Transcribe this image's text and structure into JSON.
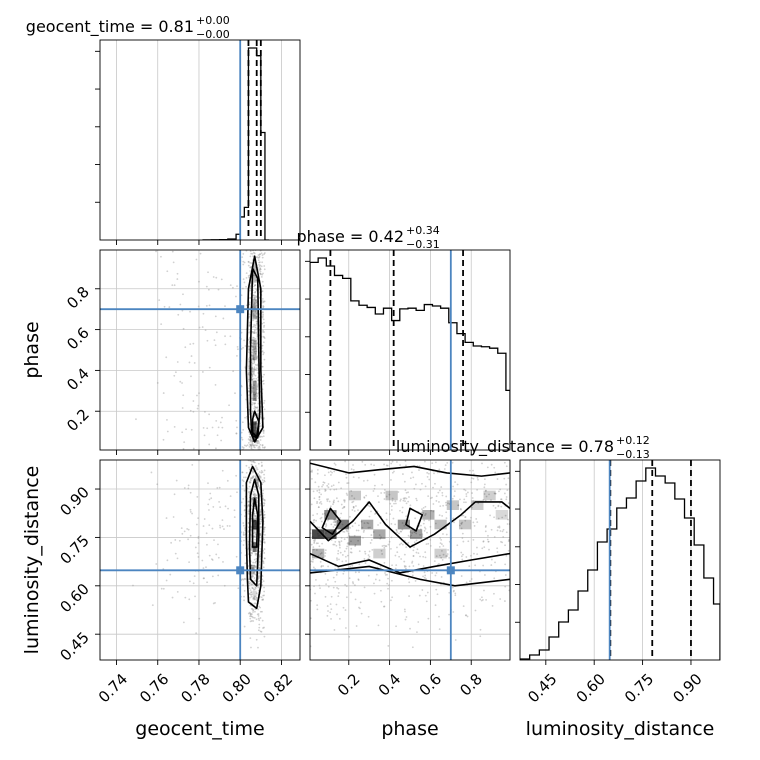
{
  "chart_data": {
    "type": "corner",
    "parameters": [
      "geocent_time",
      "phase",
      "luminosity_distance"
    ],
    "titles": {
      "geocent_time": {
        "name": "geocent_time",
        "median": "0.81",
        "plus": "+0.00",
        "minus": "−0.00"
      },
      "phase": {
        "name": "phase",
        "median": "0.42",
        "plus": "+0.34",
        "minus": "−0.31"
      },
      "luminosity_distance": {
        "name": "luminosity_distance",
        "median": "0.78",
        "plus": "+0.12",
        "minus": "−0.13"
      }
    },
    "ranges": {
      "geocent_time": [
        0.732,
        0.829
      ],
      "phase": [
        0.01,
        0.99
      ],
      "luminosity_distance": [
        0.37,
        0.99
      ]
    },
    "ticks": {
      "geocent_time": [
        0.74,
        0.76,
        0.78,
        0.8,
        0.82
      ],
      "phase": [
        0.2,
        0.4,
        0.6,
        0.8
      ],
      "luminosity_distance": [
        0.45,
        0.6,
        0.75,
        0.9
      ]
    },
    "tick_labels": {
      "geocent_time": [
        "0.74",
        "0.76",
        "0.78",
        "0.80",
        "0.82"
      ],
      "phase": [
        "0.2",
        "0.4",
        "0.6",
        "0.8"
      ],
      "luminosity_distance": [
        "0.45",
        "0.60",
        "0.75",
        "0.90"
      ]
    },
    "truths": {
      "geocent_time": 0.8,
      "phase": 0.7,
      "luminosity_distance": 0.648
    },
    "quantiles": {
      "geocent_time": [
        0.804,
        0.808,
        0.81
      ],
      "phase": [
        0.11,
        0.42,
        0.76
      ],
      "luminosity_distance": [
        0.65,
        0.78,
        0.9
      ]
    },
    "histograms": {
      "geocent_time": {
        "edges": [
          0.782,
          0.786,
          0.79,
          0.794,
          0.798,
          0.8,
          0.802,
          0.804,
          0.806,
          0.808,
          0.81,
          0.812,
          0.814
        ],
        "counts": [
          0.5,
          1,
          2,
          5,
          30,
          120,
          170,
          1000,
          1000,
          960,
          560,
          0
        ]
      },
      "phase": {
        "edges": [
          0.01,
          0.05,
          0.09,
          0.13,
          0.17,
          0.21,
          0.25,
          0.29,
          0.33,
          0.37,
          0.41,
          0.45,
          0.49,
          0.53,
          0.57,
          0.61,
          0.65,
          0.69,
          0.73,
          0.77,
          0.81,
          0.85,
          0.89,
          0.93,
          0.97,
          0.99
        ],
        "counts": [
          258,
          264,
          253,
          240,
          236,
          205,
          199,
          196,
          187,
          195,
          178,
          194,
          195,
          192,
          200,
          198,
          195,
          175,
          160,
          148,
          143,
          142,
          140,
          133,
          82
        ]
      },
      "luminosity_distance": {
        "edges": [
          0.37,
          0.4,
          0.43,
          0.46,
          0.49,
          0.52,
          0.55,
          0.58,
          0.61,
          0.64,
          0.67,
          0.7,
          0.73,
          0.76,
          0.79,
          0.82,
          0.85,
          0.88,
          0.91,
          0.94,
          0.97,
          0.99
        ],
        "counts": [
          1,
          5,
          10,
          23,
          38,
          50,
          69,
          90,
          118,
          131,
          152,
          162,
          179,
          192,
          184,
          177,
          161,
          142,
          115,
          82,
          56
        ]
      }
    },
    "contours_2d": {
      "phase_vs_geocent_time": {
        "x": "geocent_time",
        "y": "phase",
        "levels": [
          [
            [
              0.804,
              0.12
            ],
            [
              0.807,
              0.05
            ],
            [
              0.811,
              0.12
            ],
            [
              0.81,
              0.4
            ],
            [
              0.81,
              0.8
            ],
            [
              0.807,
              0.96
            ],
            [
              0.804,
              0.8
            ],
            [
              0.803,
              0.4
            ]
          ],
          [
            [
              0.8055,
              0.1
            ],
            [
              0.8085,
              0.07
            ],
            [
              0.8095,
              0.2
            ],
            [
              0.809,
              0.5
            ],
            [
              0.8085,
              0.85
            ],
            [
              0.806,
              0.9
            ],
            [
              0.805,
              0.5
            ],
            [
              0.805,
              0.2
            ]
          ],
          [
            [
              0.806,
              0.08
            ],
            [
              0.808,
              0.07
            ],
            [
              0.809,
              0.15
            ],
            [
              0.807,
              0.2
            ],
            [
              0.806,
              0.16
            ]
          ]
        ]
      },
      "luminosity_distance_vs_geocent_time": {
        "x": "geocent_time",
        "y": "luminosity_distance",
        "levels": [
          [
            [
              0.804,
              0.55
            ],
            [
              0.808,
              0.53
            ],
            [
              0.81,
              0.6
            ],
            [
              0.811,
              0.8
            ],
            [
              0.81,
              0.92
            ],
            [
              0.806,
              0.97
            ],
            [
              0.803,
              0.92
            ],
            [
              0.803,
              0.75
            ],
            [
              0.8035,
              0.62
            ]
          ],
          [
            [
              0.805,
              0.62
            ],
            [
              0.808,
              0.6
            ],
            [
              0.809,
              0.75
            ],
            [
              0.809,
              0.88
            ],
            [
              0.807,
              0.93
            ],
            [
              0.805,
              0.88
            ],
            [
              0.8045,
              0.72
            ]
          ],
          [
            [
              0.806,
              0.72
            ],
            [
              0.808,
              0.72
            ],
            [
              0.8085,
              0.82
            ],
            [
              0.807,
              0.87
            ],
            [
              0.806,
              0.82
            ]
          ]
        ]
      },
      "luminosity_distance_vs_phase": {
        "x": "phase",
        "y": "luminosity_distance",
        "levels": [
          [
            [
              0.01,
              0.64
            ],
            [
              0.3,
              0.66
            ],
            [
              0.55,
              0.62
            ],
            [
              0.72,
              0.6
            ],
            [
              0.99,
              0.62
            ]
          ],
          [
            [
              0.01,
              0.7
            ],
            [
              0.15,
              0.66
            ],
            [
              0.3,
              0.68
            ],
            [
              0.45,
              0.64
            ],
            [
              0.62,
              0.66
            ],
            [
              0.8,
              0.68
            ],
            [
              0.99,
              0.7
            ]
          ],
          [
            [
              0.01,
              0.8
            ],
            [
              0.1,
              0.74
            ],
            [
              0.22,
              0.8
            ],
            [
              0.3,
              0.86
            ],
            [
              0.38,
              0.79
            ],
            [
              0.5,
              0.72
            ],
            [
              0.62,
              0.76
            ],
            [
              0.75,
              0.82
            ],
            [
              0.82,
              0.86
            ],
            [
              0.95,
              0.86
            ],
            [
              0.99,
              0.84
            ]
          ],
          [
            [
              0.01,
              0.98
            ],
            [
              0.2,
              0.95
            ],
            [
              0.35,
              0.96
            ],
            [
              0.52,
              0.97
            ],
            [
              0.68,
              0.95
            ],
            [
              0.85,
              0.94
            ],
            [
              0.99,
              0.95
            ]
          ],
          [
            [
              0.07,
              0.78
            ],
            [
              0.12,
              0.76
            ],
            [
              0.16,
              0.8
            ],
            [
              0.11,
              0.84
            ]
          ],
          [
            [
              0.48,
              0.79
            ],
            [
              0.53,
              0.77
            ],
            [
              0.56,
              0.82
            ],
            [
              0.5,
              0.84
            ]
          ]
        ]
      }
    },
    "density_2d": {
      "phase_vs_geocent_time": {
        "cells": [
          [
            0.807,
            0.1,
            0.9
          ],
          [
            0.807,
            0.3,
            0.55
          ],
          [
            0.807,
            0.5,
            0.45
          ],
          [
            0.807,
            0.7,
            0.4
          ],
          [
            0.807,
            0.88,
            0.35
          ],
          [
            0.805,
            0.4,
            0.25
          ],
          [
            0.809,
            0.6,
            0.2
          ]
        ]
      },
      "luminosity_distance_vs_geocent_time": {
        "cells": [
          [
            0.807,
            0.79,
            0.95
          ],
          [
            0.807,
            0.72,
            0.75
          ],
          [
            0.807,
            0.86,
            0.7
          ],
          [
            0.806,
            0.65,
            0.4
          ],
          [
            0.808,
            0.92,
            0.35
          ],
          [
            0.807,
            0.57,
            0.2
          ]
        ]
      },
      "luminosity_distance_vs_phase": {
        "cells": [
          [
            0.05,
            0.76,
            0.95
          ],
          [
            0.11,
            0.76,
            0.85
          ],
          [
            0.17,
            0.79,
            0.7
          ],
          [
            0.11,
            0.82,
            0.6
          ],
          [
            0.23,
            0.74,
            0.5
          ],
          [
            0.29,
            0.79,
            0.45
          ],
          [
            0.35,
            0.76,
            0.45
          ],
          [
            0.47,
            0.79,
            0.55
          ],
          [
            0.53,
            0.76,
            0.5
          ],
          [
            0.59,
            0.82,
            0.4
          ],
          [
            0.65,
            0.79,
            0.35
          ],
          [
            0.71,
            0.85,
            0.3
          ],
          [
            0.77,
            0.79,
            0.3
          ],
          [
            0.83,
            0.85,
            0.25
          ],
          [
            0.89,
            0.88,
            0.25
          ],
          [
            0.95,
            0.82,
            0.2
          ],
          [
            0.41,
            0.88,
            0.3
          ],
          [
            0.23,
            0.88,
            0.3
          ],
          [
            0.05,
            0.7,
            0.4
          ],
          [
            0.65,
            0.7,
            0.25
          ],
          [
            0.35,
            0.7,
            0.25
          ]
        ]
      }
    },
    "colors": {
      "truth": "#4c85c0",
      "hist": "#000000",
      "quantile": "#000000",
      "grid": "#c8c8c8",
      "scatter": "#9a9a9a"
    }
  }
}
